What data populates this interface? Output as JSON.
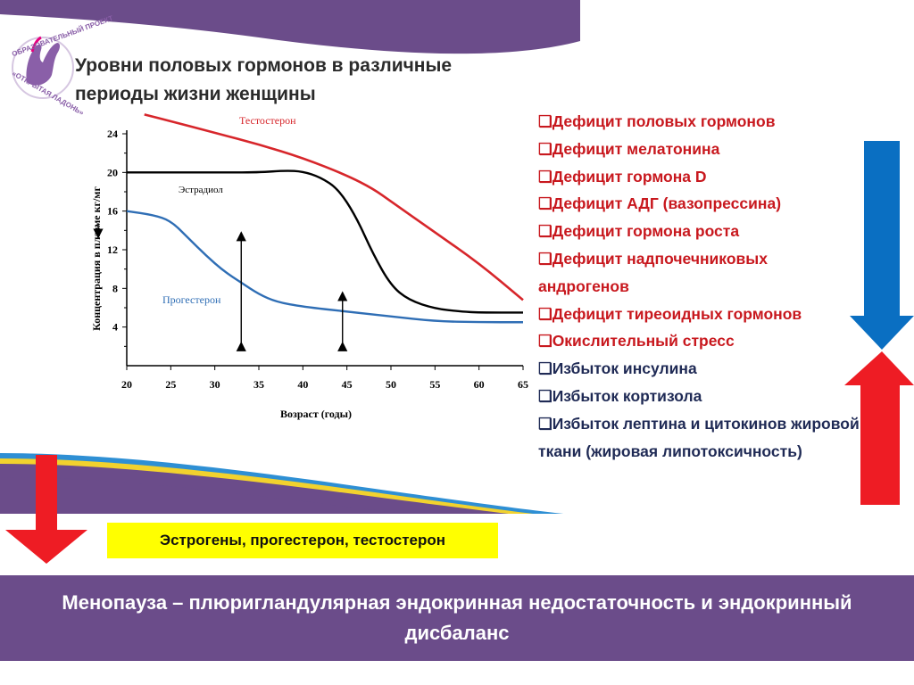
{
  "header": {
    "title_line1": "Уровни половых гормонов в различные",
    "title_line2": "периоды жизни женщины",
    "logo_text_top": "ОБРАЗОВАТЕЛЬНЫЙ ПРОЕКТ",
    "logo_text_bottom": "«ОТКРЫТАЯ ЛАДОНЬ»"
  },
  "chart_data": {
    "type": "line",
    "xlabel": "Возраст (годы)",
    "ylabel": "Концентрация в плазме кг/мг",
    "xlim": [
      20,
      65
    ],
    "ylim": [
      0,
      24
    ],
    "x_ticks": [
      "20",
      "25",
      "30",
      "35",
      "40",
      "45",
      "50",
      "55",
      "60",
      "65"
    ],
    "y_ticks": [
      "4",
      "8",
      "12",
      "16",
      "20",
      "24"
    ],
    "series": [
      {
        "name": "Тестостерон",
        "color": "#d7262b",
        "points": [
          [
            22,
            26.0
          ],
          [
            25,
            25.3
          ],
          [
            30,
            24.1
          ],
          [
            35,
            22.9
          ],
          [
            40,
            21.5
          ],
          [
            45,
            19.7
          ],
          [
            48,
            18.3
          ],
          [
            50,
            17.0
          ],
          [
            55,
            13.8
          ],
          [
            60,
            10.6
          ],
          [
            65,
            6.8
          ]
        ]
      },
      {
        "name": "Эстрадиол",
        "color": "#000000",
        "points": [
          [
            20,
            20
          ],
          [
            25,
            20
          ],
          [
            30,
            20
          ],
          [
            35,
            20
          ],
          [
            38,
            20.2
          ],
          [
            40,
            20.1
          ],
          [
            42,
            19.5
          ],
          [
            44,
            18.3
          ],
          [
            46,
            15.5
          ],
          [
            48,
            11.5
          ],
          [
            50,
            8.3
          ],
          [
            52,
            6.8
          ],
          [
            55,
            5.9
          ],
          [
            58,
            5.6
          ],
          [
            60,
            5.5
          ],
          [
            65,
            5.5
          ]
        ]
      },
      {
        "name": "Прогестерон",
        "color": "#2f6eb5",
        "points": [
          [
            20,
            16
          ],
          [
            23,
            15.6
          ],
          [
            25,
            15
          ],
          [
            27,
            13.2
          ],
          [
            29,
            11.4
          ],
          [
            31,
            9.8
          ],
          [
            33,
            8.6
          ],
          [
            35,
            7.4
          ],
          [
            37,
            6.6
          ],
          [
            40,
            6.1
          ],
          [
            45,
            5.6
          ],
          [
            50,
            5.1
          ],
          [
            55,
            4.6
          ],
          [
            60,
            4.5
          ],
          [
            65,
            4.5
          ]
        ]
      }
    ],
    "annotations": [
      {
        "type": "double-arrow",
        "x": 33,
        "y_from": 2,
        "y_to": 13.4
      },
      {
        "type": "double-arrow",
        "x": 44.5,
        "y_from": 2,
        "y_to": 7.2
      }
    ]
  },
  "deficits": [
    {
      "text": "❑Дефицит половых гормонов",
      "color": "#c8181e"
    },
    {
      "text": "❑Дефицит  мелатонина",
      "color": "#c8181e"
    },
    {
      "text": "❑Дефицит гормона D",
      "color": "#c8181e"
    },
    {
      "text": "❑Дефицит АДГ (вазопрессина)",
      "color": "#c8181e"
    },
    {
      "text": "❑Дефицит  гормона роста",
      "color": "#c8181e"
    },
    {
      "text": "❑Дефицит  надпочечниковых андрогенов",
      "color": "#c8181e"
    },
    {
      "text": "❑Дефицит тиреоидных гормонов",
      "color": "#c8181e"
    },
    {
      "text": "❑Окислительный стресс",
      "color": "#c8181e"
    },
    {
      "text": "❑Избыток  инсулина",
      "color": "#1f2a55"
    },
    {
      "text": "❑Избыток кортизола",
      "color": "#1f2a55"
    },
    {
      "text": "❑Избыток лептина и цитокинов  жировой ткани (жировая липотоксичность)",
      "color": "#1f2a55"
    }
  ],
  "highlight_box": {
    "text": "Эстрогены, прогестерон, тестостерон"
  },
  "bottom_band": {
    "text": "Менопауза – плюригландулярная  эндокринная недостаточность  и эндокринный  дисбаланс"
  },
  "colors": {
    "band_purple": "#6b4c8a",
    "swoosh_yellow": "#f2d22e",
    "swoosh_blue": "#2e8fd4",
    "arrow_red": "#ee1c24",
    "arrow_blue": "#0a6fc2",
    "highlight_yellow": "#ffff00"
  }
}
